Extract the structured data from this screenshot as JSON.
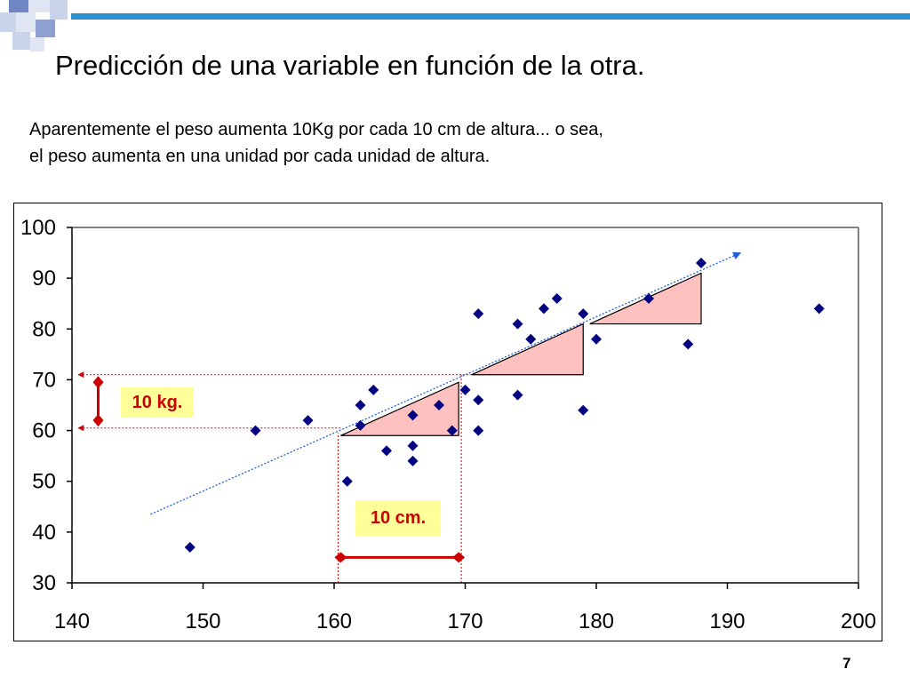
{
  "slide": {
    "title": "Predicción de una variable en función de la otra.",
    "body_line1": "Aparentemente el peso aumenta 10Kg por cada 10 cm de altura... o sea,",
    "body_line2": "el peso aumenta en una unidad por cada unidad de altura.",
    "page_number": "7"
  },
  "colors": {
    "accent_blue": "#2a8fcc",
    "deco_light": "#c9d3ea",
    "deco_dark": "#6f86c4",
    "marker": "#000080",
    "trendline": "#1f5fd6",
    "triangle_fill": "#ffc0c0",
    "annotation_red": "#cc0000",
    "annotation_bg": "#ffff99"
  },
  "annotations": {
    "weight_label": "10 kg.",
    "height_label": "10 cm."
  },
  "chart_data": {
    "type": "scatter",
    "xlim": [
      140,
      200
    ],
    "ylim": [
      30,
      100
    ],
    "x_ticks": [
      "140",
      "150",
      "160",
      "170",
      "180",
      "190",
      "200"
    ],
    "y_ticks": [
      "30",
      "40",
      "50",
      "60",
      "70",
      "80",
      "90",
      "100"
    ],
    "grid": "horizontal only, top gridline at 100",
    "points": [
      [
        149,
        37
      ],
      [
        154,
        60
      ],
      [
        158,
        62
      ],
      [
        161,
        50
      ],
      [
        162,
        61
      ],
      [
        162,
        65
      ],
      [
        163,
        68
      ],
      [
        164,
        56
      ],
      [
        166,
        54
      ],
      [
        166,
        57
      ],
      [
        166,
        63
      ],
      [
        168,
        65
      ],
      [
        169,
        60
      ],
      [
        170,
        68
      ],
      [
        171,
        60
      ],
      [
        171,
        66
      ],
      [
        171,
        83
      ],
      [
        174,
        67
      ],
      [
        174,
        81
      ],
      [
        175,
        78
      ],
      [
        176,
        84
      ],
      [
        177,
        86
      ],
      [
        179,
        64
      ],
      [
        179,
        83
      ],
      [
        180,
        78
      ],
      [
        184,
        86
      ],
      [
        187,
        77
      ],
      [
        188,
        93
      ],
      [
        197,
        84
      ]
    ],
    "trendline": {
      "from": [
        146,
        43.5
      ],
      "to": [
        191,
        95
      ]
    },
    "triangles": [
      [
        [
          160.5,
          59
        ],
        [
          169.5,
          59
        ],
        [
          169.5,
          69.5
        ]
      ],
      [
        [
          170.5,
          71
        ],
        [
          179,
          71
        ],
        [
          179,
          81
        ]
      ],
      [
        [
          179.5,
          81
        ],
        [
          188,
          81
        ],
        [
          188,
          91
        ]
      ]
    ],
    "guides": {
      "vertical": [
        [
          160.3,
          30,
          59.5
        ],
        [
          169.7,
          30,
          71
        ]
      ],
      "horizontal": [
        [
          71,
          170.5
        ],
        [
          60.5,
          160.5
        ]
      ],
      "arrow_y_at_x": 142,
      "arrow_y_range": [
        62,
        69.5
      ],
      "arrow_x_at_y": 35,
      "arrow_x_range": [
        160.5,
        169.5
      ]
    }
  }
}
